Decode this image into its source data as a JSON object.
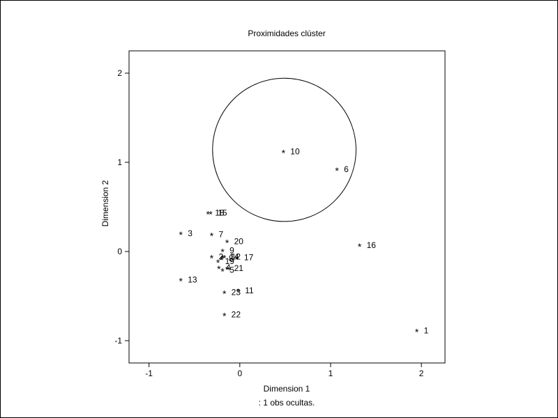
{
  "chart_data": {
    "type": "scatter",
    "title": "Proximidades clúster",
    "xlabel": "Dimension 1",
    "ylabel": "Dimension 2",
    "footnote": ": 1 obs ocultas.",
    "xlim": [
      -1.22,
      2.26
    ],
    "ylim": [
      -1.25,
      2.25
    ],
    "xticks": [
      -1,
      0,
      1,
      2
    ],
    "yticks": [
      -1,
      0,
      1,
      2
    ],
    "marker": "*",
    "points": [
      {
        "label": "1",
        "x": 1.95,
        "y": -0.88
      },
      {
        "label": "6",
        "x": 1.07,
        "y": 0.93
      },
      {
        "label": "10",
        "x": 0.48,
        "y": 1.13
      },
      {
        "label": "16",
        "x": 1.32,
        "y": 0.08
      },
      {
        "label": "18",
        "x": -0.35,
        "y": 0.44
      },
      {
        "label": "15",
        "x": -0.32,
        "y": 0.44
      },
      {
        "label": "3",
        "x": -0.65,
        "y": 0.21
      },
      {
        "label": "7",
        "x": -0.31,
        "y": 0.2
      },
      {
        "label": "20",
        "x": -0.14,
        "y": 0.12
      },
      {
        "label": "9",
        "x": -0.19,
        "y": 0.02
      },
      {
        "label": "14",
        "x": -0.19,
        "y": -0.05
      },
      {
        "label": "12",
        "x": -0.17,
        "y": -0.05
      },
      {
        "label": "2",
        "x": -0.31,
        "y": -0.05
      },
      {
        "label": "8",
        "x": -0.2,
        "y": -0.07
      },
      {
        "label": "17",
        "x": -0.03,
        "y": -0.06
      },
      {
        "label": "19",
        "x": -0.24,
        "y": -0.1
      },
      {
        "label": "4",
        "x": -0.23,
        "y": -0.17
      },
      {
        "label": "5",
        "x": -0.19,
        "y": -0.2
      },
      {
        "label": "21",
        "x": -0.14,
        "y": -0.18
      },
      {
        "label": "13",
        "x": -0.65,
        "y": -0.31
      },
      {
        "label": "23",
        "x": -0.17,
        "y": -0.45
      },
      {
        "label": "11",
        "x": -0.02,
        "y": -0.43
      },
      {
        "label": "22",
        "x": -0.17,
        "y": -0.7
      }
    ],
    "circle": {
      "center_x": 0.49,
      "center_y": 1.14,
      "radius_x": 0.79
    }
  }
}
